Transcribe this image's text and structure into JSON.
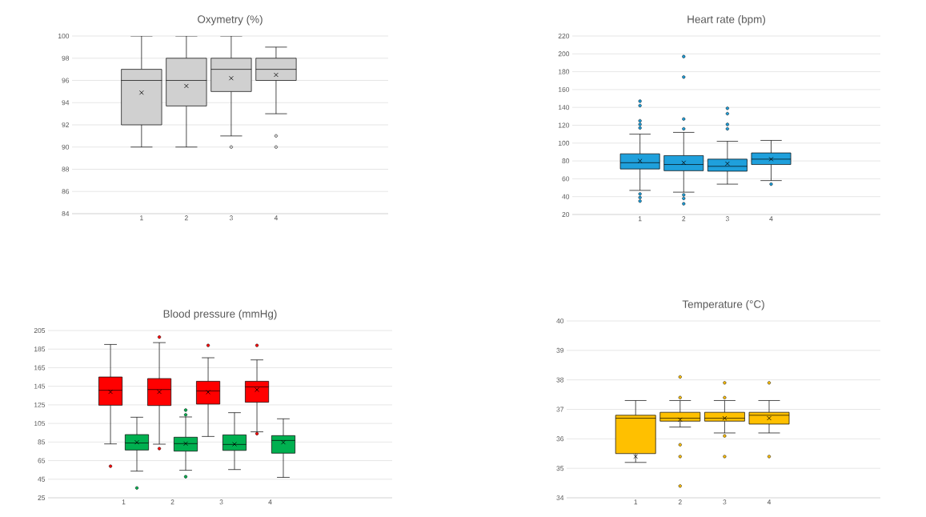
{
  "chart_data": [
    {
      "type": "box",
      "title": "Oxymetry (%)",
      "categories": [
        "1",
        "2",
        "3",
        "4"
      ],
      "grid": "y",
      "ylim": [
        84,
        100
      ],
      "yticks": [
        84,
        86,
        88,
        90,
        92,
        94,
        96,
        98,
        100
      ],
      "series": [
        {
          "color": "#d0d0d0",
          "boxes": [
            {
              "low": 90,
              "q1": 92,
              "median": 96,
              "q3": 97,
              "high": 100,
              "mean": 94.9
            },
            {
              "low": 90,
              "q1": 93.7,
              "median": 96,
              "q3": 98,
              "high": 100,
              "mean": 95.5
            },
            {
              "low": 91,
              "q1": 95,
              "median": 97,
              "q3": 98,
              "high": 100,
              "mean": 96.2,
              "outliers": [
                90
              ]
            },
            {
              "low": 93,
              "q1": 96,
              "median": 97,
              "q3": 98,
              "high": 99,
              "mean": 96.5,
              "outliers": [
                91,
                90
              ]
            }
          ]
        }
      ]
    },
    {
      "type": "box",
      "title": "Heart rate (bpm)",
      "categories": [
        "1",
        "2",
        "3",
        "4"
      ],
      "grid": "y",
      "ylim": [
        20,
        220
      ],
      "yticks": [
        20,
        40,
        60,
        80,
        100,
        120,
        140,
        160,
        180,
        200,
        220
      ],
      "series": [
        {
          "color": "#1fa0dc",
          "boxes": [
            {
              "low": 47,
              "q1": 71,
              "median": 78,
              "q3": 88,
              "high": 110,
              "mean": 80,
              "outliers": [
                147,
                142,
                125,
                121,
                117,
                43,
                39,
                35
              ]
            },
            {
              "low": 45,
              "q1": 69,
              "median": 76,
              "q3": 86,
              "high": 112,
              "mean": 78,
              "outliers": [
                197,
                174,
                127,
                116,
                42,
                38,
                32
              ]
            },
            {
              "low": 54,
              "q1": 68.5,
              "median": 74,
              "q3": 82,
              "high": 102,
              "mean": 77,
              "outliers": [
                139,
                133,
                121,
                116
              ]
            },
            {
              "low": 58,
              "q1": 76,
              "median": 82,
              "q3": 89,
              "high": 103,
              "mean": 82,
              "outliers": [
                54
              ]
            }
          ]
        }
      ]
    },
    {
      "type": "box",
      "title": "Blood pressure (mmHg)",
      "categories": [
        "1",
        "2",
        "3",
        "4"
      ],
      "grid": "y",
      "ylim": [
        25,
        205
      ],
      "yticks": [
        25,
        45,
        65,
        85,
        105,
        125,
        145,
        165,
        185,
        205
      ],
      "series": [
        {
          "color": "#ff0000",
          "boxes": [
            {
              "low": 83,
              "q1": 124.6,
              "median": 140.7,
              "q3": 155,
              "high": 190,
              "mean": 139,
              "outliers": [
                59
              ]
            },
            {
              "low": 82.7,
              "q1": 124.3,
              "median": 141.5,
              "q3": 153.3,
              "high": 192,
              "mean": 139,
              "outliers": [
                198,
                78
              ]
            },
            {
              "low": 91,
              "q1": 125.8,
              "median": 140,
              "q3": 150.4,
              "high": 175.7,
              "mean": 138.7,
              "outliers": [
                189
              ]
            },
            {
              "low": 96,
              "q1": 127.8,
              "median": 144.4,
              "q3": 150.4,
              "high": 173.4,
              "mean": 141.3,
              "outliers": [
                189,
                94
              ]
            }
          ]
        },
        {
          "color": "#00b050",
          "boxes": [
            {
              "low": 53.7,
              "q1": 76.4,
              "median": 84,
              "q3": 93,
              "high": 111.7,
              "mean": 84.7,
              "outliers": [
                35.6
              ]
            },
            {
              "low": 54.6,
              "q1": 75.2,
              "median": 83.3,
              "q3": 90.2,
              "high": 112,
              "mean": 83.3,
              "outliers": [
                119.4,
                114.3,
                47.7
              ]
            },
            {
              "low": 55.4,
              "q1": 76,
              "median": 82.4,
              "q3": 92.7,
              "high": 116.6,
              "mean": 82.7
            },
            {
              "low": 47,
              "q1": 73,
              "median": 86.7,
              "q3": 91.9,
              "high": 110,
              "mean": 84.7
            }
          ]
        }
      ]
    },
    {
      "type": "box",
      "title": "Temperature (°C)",
      "categories": [
        "1",
        "2",
        "3",
        "4"
      ],
      "grid": "y",
      "ylim": [
        34,
        40
      ],
      "yticks": [
        34,
        35,
        36,
        37,
        38,
        39,
        40
      ],
      "series": [
        {
          "color": "#ffc000",
          "boxes": [
            {
              "low": 35.2,
              "q1": 35.5,
              "median": 36.7,
              "q3": 36.8,
              "high": 37.3,
              "mean": 35.4
            },
            {
              "low": 36.4,
              "q1": 36.6,
              "median": 36.7,
              "q3": 36.9,
              "high": 37.3,
              "mean": 36.65,
              "outliers": [
                38.1,
                37.4,
                35.8,
                35.4,
                34.4
              ]
            },
            {
              "low": 36.2,
              "q1": 36.6,
              "median": 36.7,
              "q3": 36.9,
              "high": 37.3,
              "mean": 36.7,
              "outliers": [
                37.9,
                37.4,
                36.1,
                35.4
              ]
            },
            {
              "low": 36.2,
              "q1": 36.5,
              "median": 36.8,
              "q3": 36.9,
              "high": 37.3,
              "mean": 36.7,
              "outliers": [
                37.9,
                35.4
              ]
            }
          ]
        }
      ]
    }
  ]
}
